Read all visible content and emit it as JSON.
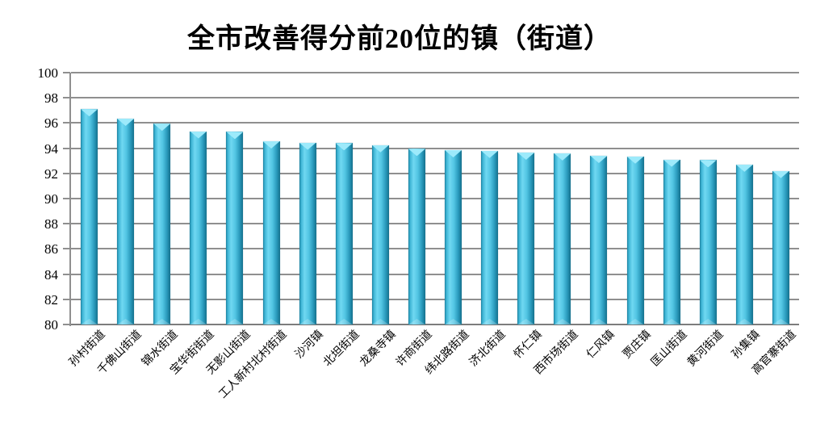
{
  "chart_data": {
    "type": "bar",
    "title": "全市改善得分前20位的镇（街道）",
    "categories": [
      "孙村街道",
      "千佛山街道",
      "锦水街道",
      "宝华街街道",
      "无影山街道",
      "工人新村北村街道",
      "沙河镇",
      "北坦街道",
      "龙桑寺镇",
      "许商街道",
      "纬北路街道",
      "济北街道",
      "怀仁镇",
      "西市场街道",
      "仁风镇",
      "贾庄镇",
      "匡山街道",
      "黄河街道",
      "孙集镇",
      "高官寨街道"
    ],
    "values": [
      97.1,
      96.35,
      95.95,
      95.35,
      95.3,
      94.55,
      94.45,
      94.4,
      94.25,
      93.95,
      93.85,
      93.8,
      93.65,
      93.6,
      93.4,
      93.35,
      93.1,
      93.05,
      92.7,
      92.2
    ],
    "xlabel": "",
    "ylabel": "",
    "ylim": [
      80,
      100
    ],
    "yticks": [
      100,
      98,
      96,
      94,
      92,
      90,
      88,
      86,
      84,
      82,
      80
    ],
    "grid": true,
    "legend": "none",
    "colors": {
      "bar_gradient": [
        "#1c81a0",
        "#3db4d4",
        "#70d8f2",
        "#52c5e3",
        "#2a9abc",
        "#14708c"
      ],
      "bar_cap": "#9deafb",
      "gridline": "#8f8f8f",
      "text": "#000000",
      "background": "#ffffff"
    }
  }
}
